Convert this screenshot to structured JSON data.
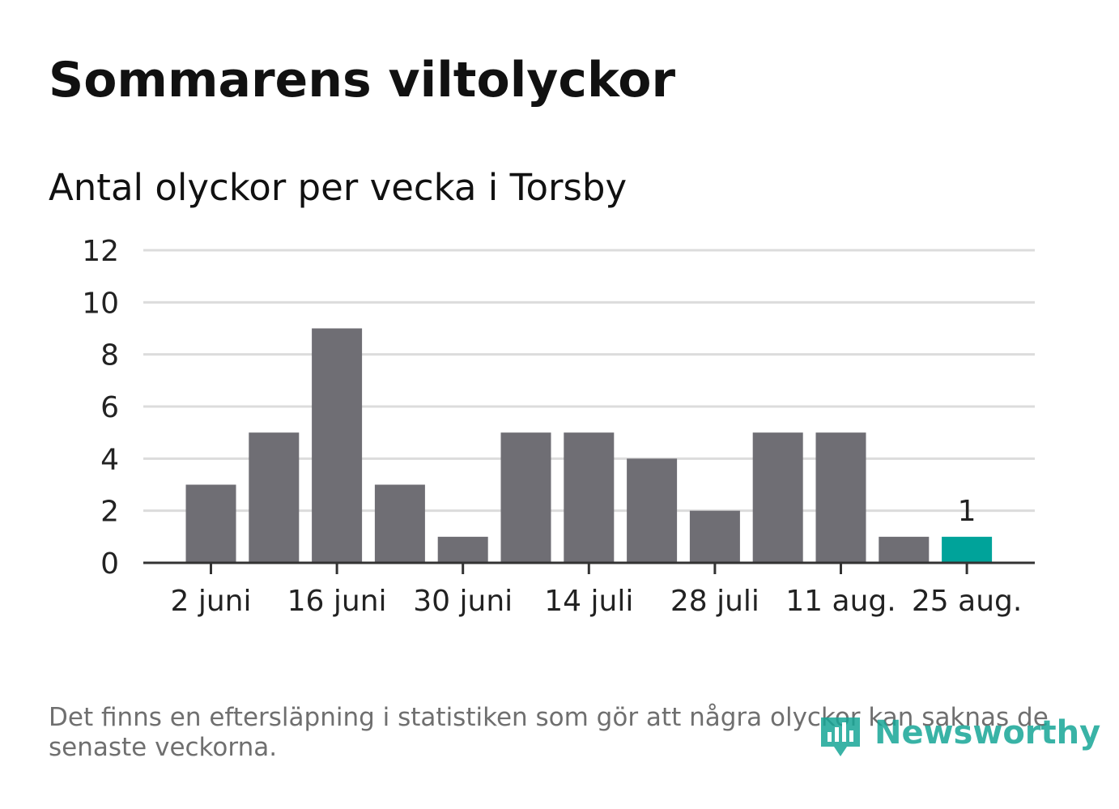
{
  "title": "Sommarens viltolyckor",
  "subtitle": "Antal olyckor per vecka i Torsby",
  "footnote": "Det finns en eftersläpning i statistiken som gör att några olyckor kan saknas de senaste veckorna.",
  "logo_text": "Newsworthy",
  "colors": {
    "bar": "#6f6e74",
    "highlight": "#00a39a",
    "grid": "#dcdcdc",
    "axis": "#333333",
    "logo": "#17a697"
  },
  "chart_data": {
    "type": "bar",
    "title": "Sommarens viltolyckor",
    "subtitle": "Antal olyckor per vecka i Torsby",
    "x_tick_labels": [
      "2 juni",
      "16 juni",
      "30 juni",
      "14 juli",
      "28 juli",
      "11 aug.",
      "25 aug."
    ],
    "values": [
      3,
      5,
      9,
      3,
      1,
      5,
      5,
      4,
      2,
      5,
      5,
      1,
      1
    ],
    "highlight_index": 12,
    "data_labels": [
      {
        "index": 12,
        "text": "1"
      }
    ],
    "ylim": [
      0,
      12
    ],
    "y_ticks": [
      0,
      2,
      4,
      6,
      8,
      10,
      12
    ],
    "grid": true,
    "xlabel": "",
    "ylabel": ""
  }
}
